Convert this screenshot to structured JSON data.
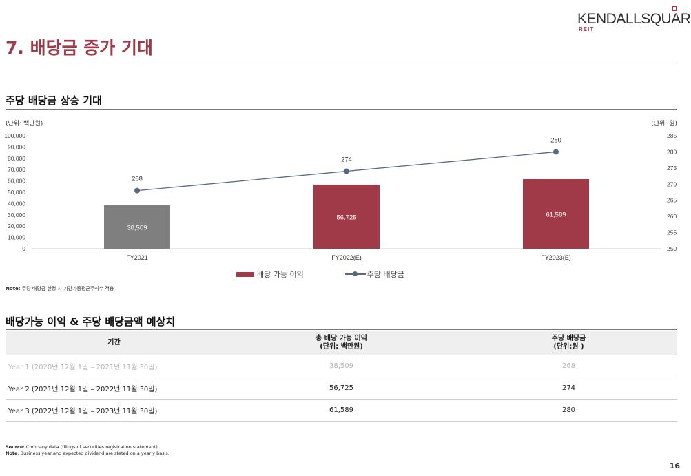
{
  "brand": {
    "name": "KENDALLSQUARE",
    "sub": "REIT",
    "accent": "#a03a48"
  },
  "page_title": "7. 배당금 증가 기대",
  "chart_section_title": "주당 배당금 상승 기대",
  "unit_left": "(단위: 백만원)",
  "unit_right": "(단위: 원)",
  "chart_data": {
    "type": "bar",
    "categories": [
      "FY2021",
      "FY2022(E)",
      "FY2023(E)"
    ],
    "series": [
      {
        "name": "배당 가능 이익",
        "kind": "bar",
        "axis": "left",
        "values": [
          38509,
          56725,
          61589
        ],
        "labels": [
          "38,509",
          "56,725",
          "61,589"
        ],
        "colors": [
          "#7f7f7f",
          "#a03a48",
          "#a03a48"
        ]
      },
      {
        "name": "주당 배당금",
        "kind": "line",
        "axis": "right",
        "values": [
          268,
          274,
          280
        ],
        "labels": [
          "268",
          "274",
          "280"
        ],
        "color": "#5a6a86"
      }
    ],
    "y_left": {
      "min": 0,
      "max": 100000,
      "ticks": [
        "0",
        "10,000",
        "20,000",
        "30,000",
        "40,000",
        "50,000",
        "60,000",
        "70,000",
        "80,000",
        "90,000",
        "100,000"
      ]
    },
    "y_right": {
      "min": 250,
      "max": 285,
      "ticks": [
        "250",
        "255",
        "260",
        "265",
        "270",
        "275",
        "280",
        "285"
      ]
    },
    "grid": false,
    "legend": "bottom-center"
  },
  "legend": {
    "bar_label": "배당 가능 이익",
    "line_label": "주당 배당금"
  },
  "note_top": {
    "label": "Note:",
    "text": "주당 배당금 산정 시 기간가중평균주식수 적용"
  },
  "table_section_title": "배당가능 이익 & 주당 배당금액 예상치",
  "table": {
    "headers": {
      "period": "기간",
      "income_line1": "총 배당 가능 이익",
      "income_line2": "(단위: 백만원)",
      "dps_line1": "주당 배당금",
      "dps_line2": "(단위:원 )"
    },
    "rows": [
      {
        "period": "Year 1 (2020년 12월 1일 – 2021년 11월 30일)",
        "income": "38,509",
        "dps": "268"
      },
      {
        "period": "Year 2 (2021년 12월 1일 – 2022년 11월 30일)",
        "income": "56,725",
        "dps": "274"
      },
      {
        "period": "Year 3 (2022년 12월 1일 – 2023년 11월 30일)",
        "income": "61,589",
        "dps": "280"
      }
    ]
  },
  "source": {
    "label": "Source:",
    "text": "Company data (filings of securities registration statement)"
  },
  "note_bottom": {
    "label": "Note",
    "text": ": Business year and expected dividend are stated on a yearly basis."
  },
  "page_number": "16"
}
